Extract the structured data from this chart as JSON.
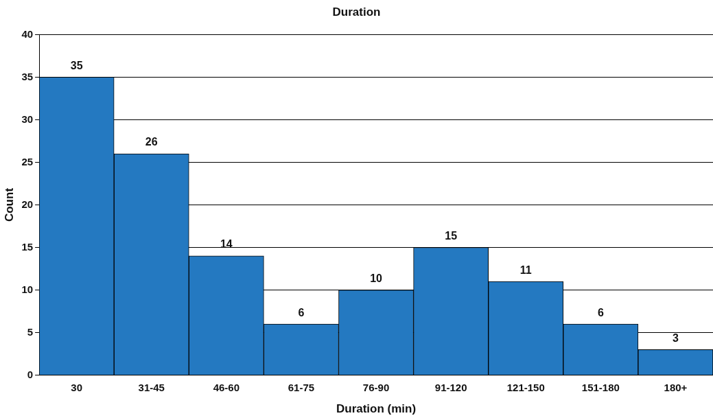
{
  "chart_data": {
    "type": "bar",
    "title": "Duration",
    "xlabel": "Duration (min)",
    "ylabel": "Count",
    "categories": [
      "30",
      "31-45",
      "46-60",
      "61-75",
      "76-90",
      "91-120",
      "121-150",
      "151-180",
      "180+"
    ],
    "values": [
      35,
      26,
      14,
      6,
      10,
      15,
      11,
      6,
      3
    ],
    "color": "#2479c1",
    "ylim": [
      0,
      40
    ],
    "yticks": [
      0,
      5,
      10,
      15,
      20,
      25,
      30,
      35,
      40
    ],
    "grid": "y",
    "data_labels": true
  }
}
